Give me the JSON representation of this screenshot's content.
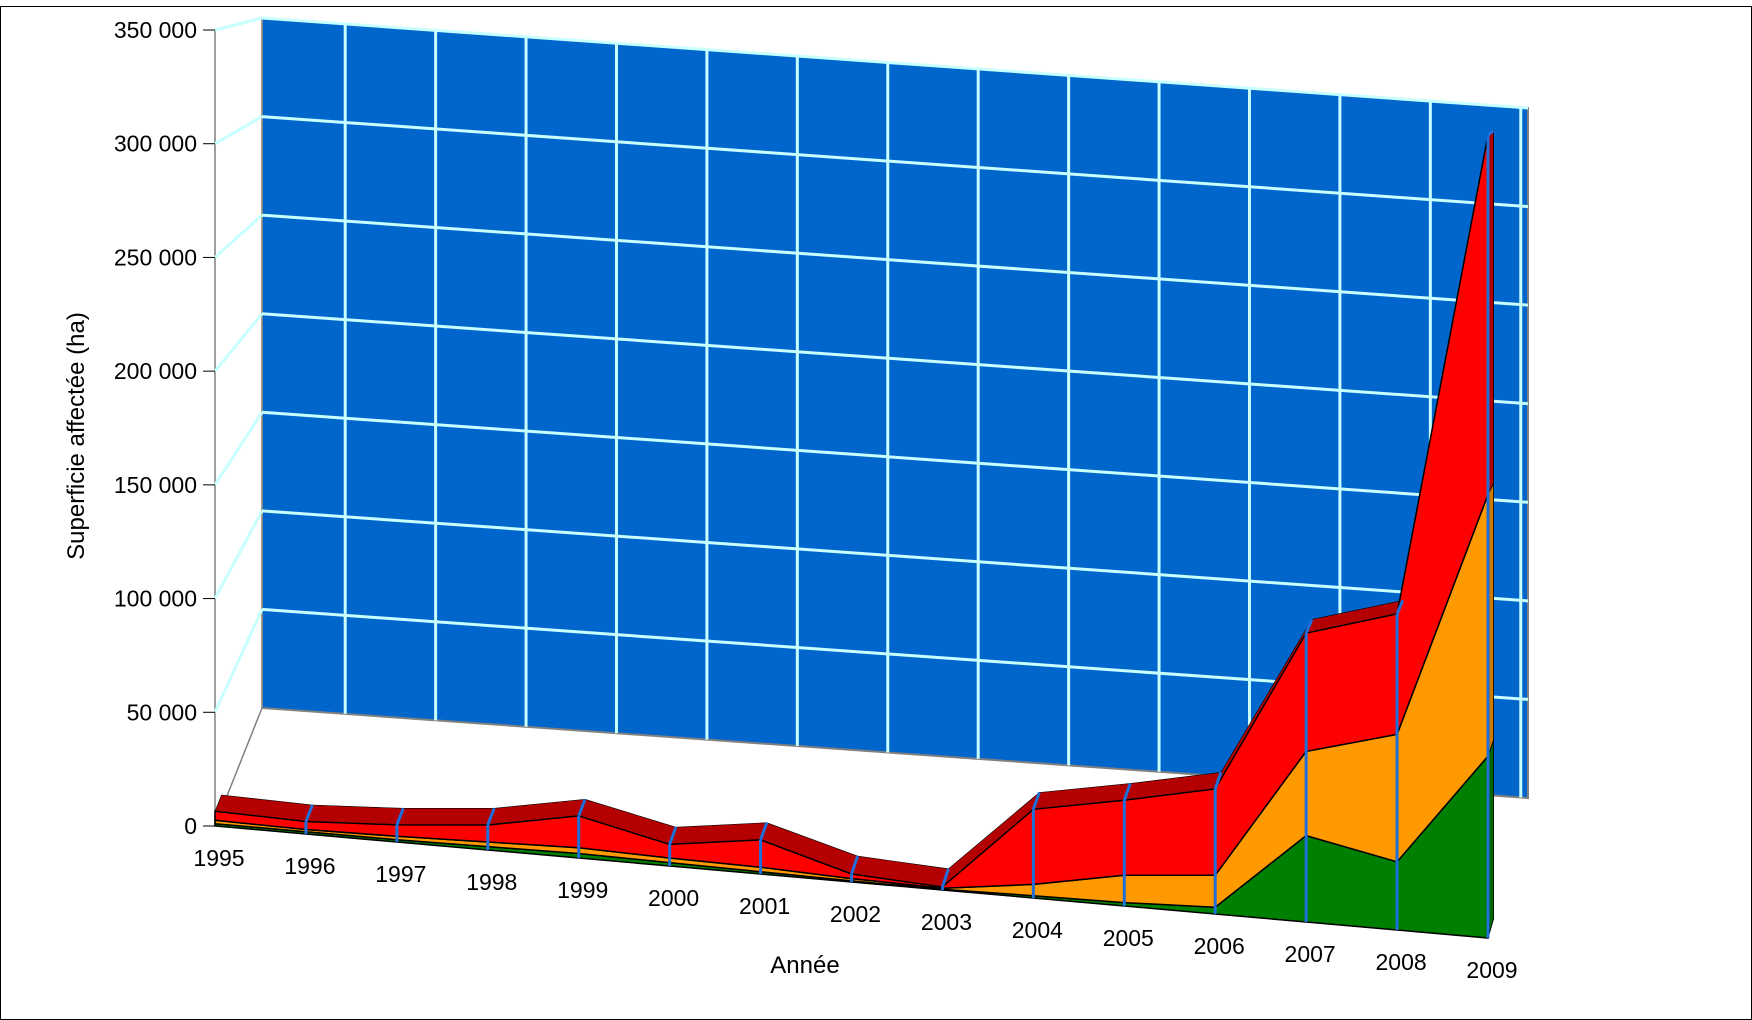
{
  "chart_data": {
    "type": "area",
    "stacked": true,
    "three_d": true,
    "title": "",
    "xlabel": "Année",
    "ylabel": "Superficie affectée (ha)",
    "categories": [
      "1995",
      "1996",
      "1997",
      "1998",
      "1999",
      "2000",
      "2001",
      "2002",
      "2003",
      "2004",
      "2005",
      "2006",
      "2007",
      "2008",
      "2009"
    ],
    "ylim": [
      0,
      350000
    ],
    "yticks": [
      0,
      50000,
      100000,
      150000,
      200000,
      250000,
      300000,
      350000
    ],
    "ytick_labels": [
      "0",
      "50 000",
      "100 000",
      "150 000",
      "200 000",
      "250 000",
      "300 000",
      "350 000"
    ],
    "grid": true,
    "legend": "none",
    "series": [
      {
        "color": "#008000",
        "values": [
          1000,
          1000,
          1000,
          1500,
          2000,
          1500,
          1000,
          500,
          300,
          1000,
          1500,
          3000,
          38000,
          30000,
          80000
        ]
      },
      {
        "color": "#FF9900",
        "values": [
          1500,
          1000,
          1500,
          2000,
          2500,
          2000,
          2000,
          1000,
          500,
          5000,
          12000,
          14000,
          37000,
          56000,
          115000
        ]
      },
      {
        "color": "#FF0000",
        "values": [
          4000,
          3500,
          5000,
          7500,
          14000,
          6000,
          12000,
          2000,
          500,
          33000,
          33000,
          38000,
          52000,
          53000,
          158000
        ]
      }
    ],
    "colors": {
      "back_wall": "#0066CC",
      "gridlines": "#C8FFFF",
      "floor": "#808080",
      "top_faces": [
        "#006600",
        "#CC7A00",
        "#B40000"
      ]
    }
  }
}
